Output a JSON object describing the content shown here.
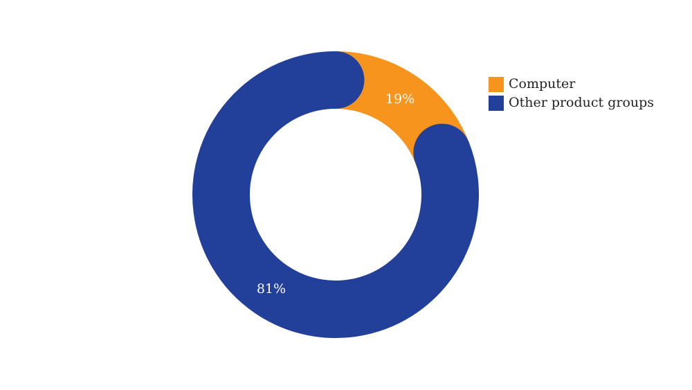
{
  "chart_data": {
    "type": "donut",
    "categories": [
      "Computer",
      "Other product groups"
    ],
    "values": [
      19,
      81
    ],
    "value_labels": [
      "19%",
      "81%"
    ],
    "colors": [
      "#f7941d",
      "#22409a"
    ],
    "legend": "top-right"
  }
}
